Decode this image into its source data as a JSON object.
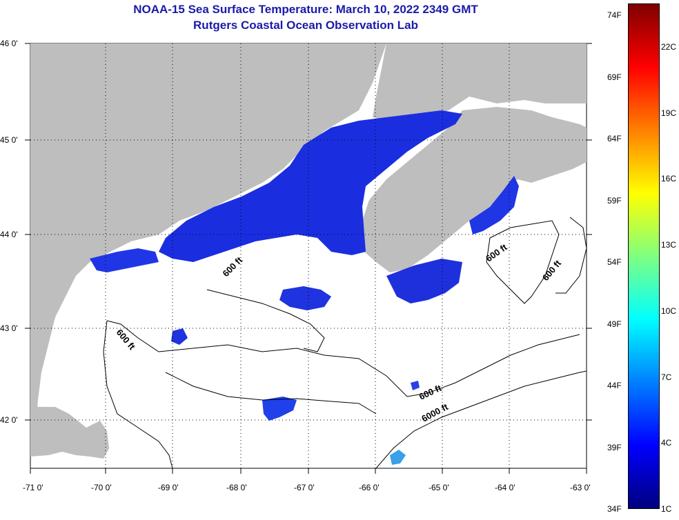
{
  "header": {
    "title": "NOAA-15 Sea Surface Temperature:  March 10, 2022 2349 GMT",
    "subtitle": "Rutgers Coastal Ocean Observation Lab"
  },
  "map": {
    "lat_labels": [
      "46 0'",
      "45 0'",
      "44 0'",
      "43 0'",
      "42 0'"
    ],
    "lon_labels": [
      "-71 0'",
      "-70 0'",
      "-69 0'",
      "-68 0'",
      "-67 0'",
      "-66 0'",
      "-65 0'",
      "-64 0'",
      "-63 0'"
    ],
    "contour_labels": [
      "600 ft",
      "600 ft",
      "600 ft",
      "600 ft",
      "600 ft",
      "6000 ft"
    ],
    "land_color": "#bebebe",
    "water_color": "#ffffff"
  },
  "colorbar": {
    "fahrenheit": [
      "74F",
      "69F",
      "64F",
      "59F",
      "54F",
      "49F",
      "44F",
      "39F",
      "34F"
    ],
    "celsius": [
      "22C",
      "19C",
      "16C",
      "13C",
      "10C",
      "7C",
      "4C",
      "1C"
    ],
    "colors": [
      "#00007f",
      "#0000ff",
      "#0080ff",
      "#00ffff",
      "#80ff80",
      "#ffff00",
      "#ff8000",
      "#ff0000",
      "#7f0000"
    ]
  }
}
